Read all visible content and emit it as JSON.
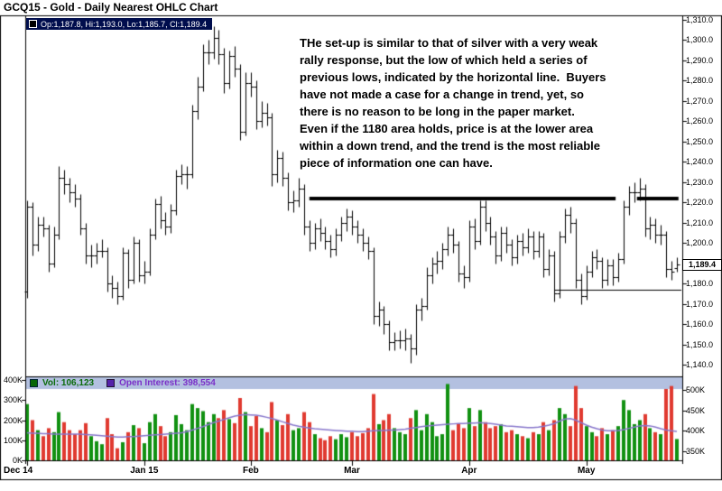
{
  "title": "GCQ15 - Gold - Daily Nearest OHLC Chart",
  "quote_box": {
    "text": "Op:1,187.8, Hi:1,193.0, Lo:1,185.7, Cl:1,189.4"
  },
  "annotation": {
    "lines": [
      "THe set-up is similar to that of silver with a very weak",
      "rally response, but the low of which held a series of",
      "previous lows, indicated by the horizontal line.  Buyers",
      "have not made a case for a change in trend, yet, so",
      "there is no reason to be long in the paper market.",
      "Even if the 1180 area holds, price is at the lower area",
      "within a down trend, and the trend is the most reliable",
      "piece of information one can have."
    ]
  },
  "legend": {
    "volume_label": "Vol: 106,123",
    "open_interest_label": "Open Interest: 398,554"
  },
  "price_marker": {
    "label": "1,189.4"
  },
  "axes": {
    "price_ticks": [
      "1,310.0",
      "1,300.0",
      "1,290.0",
      "1,280.0",
      "1,270.0",
      "1,260.0",
      "1,250.0",
      "1,240.0",
      "1,230.0",
      "1,220.0",
      "1,210.0",
      "1,200.0",
      "1,190.0",
      "1,180.0",
      "1,170.0",
      "1,160.0",
      "1,150.0",
      "1,140.0"
    ],
    "volume_left_ticks": [
      "400K",
      "300K",
      "200K",
      "100K",
      "0K"
    ],
    "oi_right_ticks": [
      "500K",
      "450K",
      "400K",
      "350K"
    ]
  },
  "colors": {
    "up": "#119111",
    "down": "#e03a30",
    "oi_line": "#8877cc",
    "vol_text": "#0a6a0a",
    "vol_swatch": "#076607",
    "oi_text": "#7a30c8",
    "oi_swatch": "#5522aa",
    "legend_bg": "#b3c0e0",
    "quote_bg": "#000d4d",
    "bars": "#000000",
    "lines": "#000000"
  },
  "chart_data": {
    "type": "ohlc-with-volume",
    "title": "GCQ15 - Gold - Daily Nearest OHLC Chart",
    "price_axis": {
      "min": 1140,
      "max": 1310,
      "tick_step": 10
    },
    "volume_axis": {
      "min": 0,
      "max": 400000
    },
    "oi_axis": {
      "min": 350000,
      "max": 500000
    },
    "months": [
      {
        "label": "Dec 14",
        "start_index": 0
      },
      {
        "label": "Jan 15",
        "start_index": 22
      },
      {
        "label": "Feb",
        "start_index": 42
      },
      {
        "label": "Mar",
        "start_index": 61
      },
      {
        "label": "Apr",
        "start_index": 83
      },
      {
        "label": "May",
        "start_index": 105
      }
    ],
    "bars": [
      [
        1176,
        1221,
        1173,
        1218
      ],
      [
        1218,
        1220,
        1194,
        1199
      ],
      [
        1199,
        1213,
        1196,
        1209
      ],
      [
        1209,
        1213,
        1203,
        1207
      ],
      [
        1207,
        1209,
        1186,
        1190
      ],
      [
        1190,
        1208,
        1188,
        1204
      ],
      [
        1204,
        1238,
        1202,
        1232
      ],
      [
        1232,
        1236,
        1224,
        1229
      ],
      [
        1229,
        1232,
        1220,
        1225
      ],
      [
        1225,
        1229,
        1218,
        1222
      ],
      [
        1222,
        1224,
        1204,
        1207
      ],
      [
        1207,
        1210,
        1190,
        1194
      ],
      [
        1194,
        1199,
        1188,
        1194
      ],
      [
        1194,
        1200,
        1190,
        1196
      ],
      [
        1196,
        1202,
        1193,
        1196
      ],
      [
        1196,
        1198,
        1176,
        1180
      ],
      [
        1180,
        1184,
        1173,
        1178
      ],
      [
        1178,
        1181,
        1170,
        1174
      ],
      [
        1174,
        1198,
        1172,
        1195
      ],
      [
        1195,
        1197,
        1178,
        1182
      ],
      [
        1182,
        1203,
        1180,
        1200
      ],
      [
        1200,
        1202,
        1181,
        1184
      ],
      [
        1184,
        1191,
        1180,
        1186
      ],
      [
        1186,
        1207,
        1184,
        1204
      ],
      [
        1204,
        1222,
        1202,
        1219
      ],
      [
        1219,
        1223,
        1207,
        1211
      ],
      [
        1211,
        1215,
        1204,
        1208
      ],
      [
        1208,
        1219,
        1205,
        1216
      ],
      [
        1216,
        1236,
        1214,
        1233
      ],
      [
        1233,
        1239,
        1229,
        1234
      ],
      [
        1234,
        1238,
        1227,
        1234
      ],
      [
        1234,
        1268,
        1232,
        1265
      ],
      [
        1265,
        1282,
        1261,
        1277
      ],
      [
        1277,
        1298,
        1275,
        1294
      ],
      [
        1294,
        1300,
        1288,
        1294
      ],
      [
        1294,
        1307,
        1291,
        1301
      ],
      [
        1301,
        1305,
        1288,
        1293
      ],
      [
        1293,
        1296,
        1274,
        1279
      ],
      [
        1279,
        1295,
        1276,
        1292
      ],
      [
        1292,
        1297,
        1282,
        1286
      ],
      [
        1286,
        1288,
        1251,
        1255
      ],
      [
        1255,
        1284,
        1253,
        1279
      ],
      [
        1279,
        1284,
        1272,
        1277
      ],
      [
        1277,
        1280,
        1256,
        1260
      ],
      [
        1260,
        1270,
        1257,
        1264
      ],
      [
        1264,
        1269,
        1258,
        1262
      ],
      [
        1262,
        1264,
        1228,
        1234
      ],
      [
        1234,
        1246,
        1230,
        1242
      ],
      [
        1242,
        1245,
        1228,
        1232
      ],
      [
        1232,
        1235,
        1216,
        1220
      ],
      [
        1220,
        1226,
        1215,
        1221
      ],
      [
        1221,
        1232,
        1218,
        1227
      ],
      [
        1227,
        1229,
        1204,
        1208
      ],
      [
        1208,
        1211,
        1196,
        1200
      ],
      [
        1200,
        1210,
        1197,
        1207
      ],
      [
        1207,
        1212,
        1201,
        1205
      ],
      [
        1205,
        1208,
        1197,
        1201
      ],
      [
        1201,
        1204,
        1193,
        1197
      ],
      [
        1197,
        1207,
        1194,
        1204
      ],
      [
        1204,
        1213,
        1201,
        1210
      ],
      [
        1210,
        1217,
        1206,
        1213
      ],
      [
        1213,
        1216,
        1204,
        1208
      ],
      [
        1208,
        1211,
        1200,
        1204
      ],
      [
        1204,
        1207,
        1196,
        1200
      ],
      [
        1200,
        1203,
        1192,
        1196
      ],
      [
        1196,
        1198,
        1160,
        1164
      ],
      [
        1164,
        1171,
        1159,
        1167
      ],
      [
        1167,
        1169,
        1155,
        1160
      ],
      [
        1160,
        1162,
        1147,
        1151
      ],
      [
        1151,
        1156,
        1147,
        1152
      ],
      [
        1152,
        1157,
        1148,
        1152
      ],
      [
        1152,
        1158,
        1147,
        1153
      ],
      [
        1153,
        1155,
        1141,
        1148
      ],
      [
        1148,
        1170,
        1145,
        1167
      ],
      [
        1167,
        1173,
        1162,
        1169
      ],
      [
        1169,
        1188,
        1167,
        1184
      ],
      [
        1184,
        1193,
        1180,
        1190
      ],
      [
        1190,
        1196,
        1185,
        1191
      ],
      [
        1191,
        1200,
        1187,
        1197
      ],
      [
        1197,
        1208,
        1194,
        1204
      ],
      [
        1204,
        1207,
        1195,
        1199
      ],
      [
        1199,
        1201,
        1181,
        1185
      ],
      [
        1185,
        1189,
        1178,
        1183
      ],
      [
        1183,
        1211,
        1181,
        1208
      ],
      [
        1208,
        1212,
        1197,
        1201
      ],
      [
        1201,
        1221,
        1199,
        1218
      ],
      [
        1218,
        1221,
        1206,
        1210
      ],
      [
        1210,
        1213,
        1199,
        1203
      ],
      [
        1203,
        1206,
        1190,
        1194
      ],
      [
        1194,
        1208,
        1191,
        1205
      ],
      [
        1205,
        1208,
        1195,
        1199
      ],
      [
        1199,
        1202,
        1189,
        1193
      ],
      [
        1193,
        1204,
        1190,
        1201
      ],
      [
        1201,
        1205,
        1194,
        1198
      ],
      [
        1198,
        1207,
        1195,
        1203
      ],
      [
        1203,
        1206,
        1192,
        1196
      ],
      [
        1196,
        1206,
        1193,
        1203
      ],
      [
        1203,
        1205,
        1183,
        1187
      ],
      [
        1187,
        1197,
        1184,
        1194
      ],
      [
        1194,
        1196,
        1171,
        1175
      ],
      [
        1175,
        1206,
        1173,
        1203
      ],
      [
        1203,
        1217,
        1200,
        1214
      ],
      [
        1214,
        1218,
        1205,
        1210
      ],
      [
        1210,
        1212,
        1178,
        1182
      ],
      [
        1182,
        1185,
        1170,
        1174
      ],
      [
        1174,
        1189,
        1172,
        1186
      ],
      [
        1186,
        1196,
        1183,
        1193
      ],
      [
        1193,
        1197,
        1187,
        1191
      ],
      [
        1191,
        1193,
        1178,
        1182
      ],
      [
        1182,
        1192,
        1179,
        1189
      ],
      [
        1189,
        1192,
        1179,
        1183
      ],
      [
        1183,
        1195,
        1181,
        1192
      ],
      [
        1192,
        1221,
        1190,
        1218
      ],
      [
        1218,
        1228,
        1214,
        1225
      ],
      [
        1225,
        1230,
        1220,
        1225
      ],
      [
        1225,
        1232,
        1221,
        1227
      ],
      [
        1227,
        1229,
        1203,
        1207
      ],
      [
        1207,
        1213,
        1202,
        1209
      ],
      [
        1209,
        1212,
        1200,
        1204
      ],
      [
        1204,
        1209,
        1199,
        1204
      ],
      [
        1204,
        1206,
        1183,
        1187
      ],
      [
        1187,
        1191,
        1182,
        1186
      ],
      [
        1187.8,
        1193,
        1185.7,
        1189.4
      ]
    ],
    "volumes_k": [
      280,
      200,
      150,
      120,
      160,
      140,
      240,
      190,
      150,
      130,
      150,
      185,
      120,
      95,
      80,
      210,
      130,
      60,
      90,
      140,
      175,
      160,
      85,
      190,
      230,
      170,
      120,
      140,
      225,
      180,
      150,
      280,
      260,
      245,
      190,
      230,
      210,
      250,
      205,
      185,
      310,
      240,
      170,
      220,
      160,
      140,
      290,
      200,
      175,
      230,
      150,
      160,
      240,
      190,
      130,
      110,
      100,
      120,
      105,
      130,
      115,
      140,
      120,
      135,
      160,
      330,
      180,
      200,
      230,
      160,
      140,
      130,
      210,
      250,
      150,
      230,
      190,
      120,
      130,
      380,
      150,
      180,
      160,
      260,
      170,
      250,
      190,
      160,
      170,
      180,
      140,
      150,
      130,
      120,
      110,
      140,
      130,
      190,
      150,
      200,
      260,
      230,
      170,
      370,
      260,
      170,
      140,
      120,
      160,
      130,
      150,
      170,
      300,
      250,
      180,
      200,
      230,
      160,
      140,
      130,
      355,
      370,
      106
    ],
    "open_interest_k": [
      395,
      394,
      394,
      393,
      393,
      392,
      392,
      392,
      392,
      392,
      392,
      391,
      390,
      389,
      388,
      387,
      386,
      385,
      385,
      386,
      386,
      387,
      388,
      389,
      390,
      391,
      392,
      393,
      394,
      395,
      398,
      402,
      406,
      410,
      415,
      420,
      424,
      428,
      432,
      436,
      438,
      440,
      439,
      438,
      436,
      433,
      430,
      426,
      422,
      418,
      414,
      411,
      409,
      407,
      405,
      404,
      403,
      402,
      401,
      400,
      399,
      399,
      398,
      398,
      399,
      400,
      401,
      401,
      402,
      402,
      403,
      404,
      406,
      408,
      410,
      412,
      413,
      414,
      415,
      416,
      417,
      418,
      418,
      419,
      419,
      420,
      419,
      418,
      416,
      414,
      412,
      411,
      410,
      409,
      408,
      408,
      409,
      411,
      414,
      418,
      424,
      429,
      430,
      426,
      420,
      414,
      409,
      405,
      402,
      400,
      400,
      401,
      403,
      406,
      409,
      412,
      413,
      412,
      409,
      405,
      402,
      400,
      398.5
    ],
    "lines": [
      {
        "name": "resistance-main",
        "price": 1222,
        "x_start_index": 53,
        "x_end_index": 110.5,
        "width": 4
      },
      {
        "name": "resistance-right",
        "price": 1222,
        "x_start_index": 114.5,
        "x_end_index": 122.3,
        "width": 4
      },
      {
        "name": "support-1180",
        "price": 1177,
        "x_start_index": 99,
        "x_end_index": 123,
        "width": 1
      }
    ],
    "last": {
      "open": 1187.8,
      "high": 1193.0,
      "low": 1185.7,
      "close": 1189.4,
      "volume": 106123,
      "open_interest": 398554
    }
  }
}
